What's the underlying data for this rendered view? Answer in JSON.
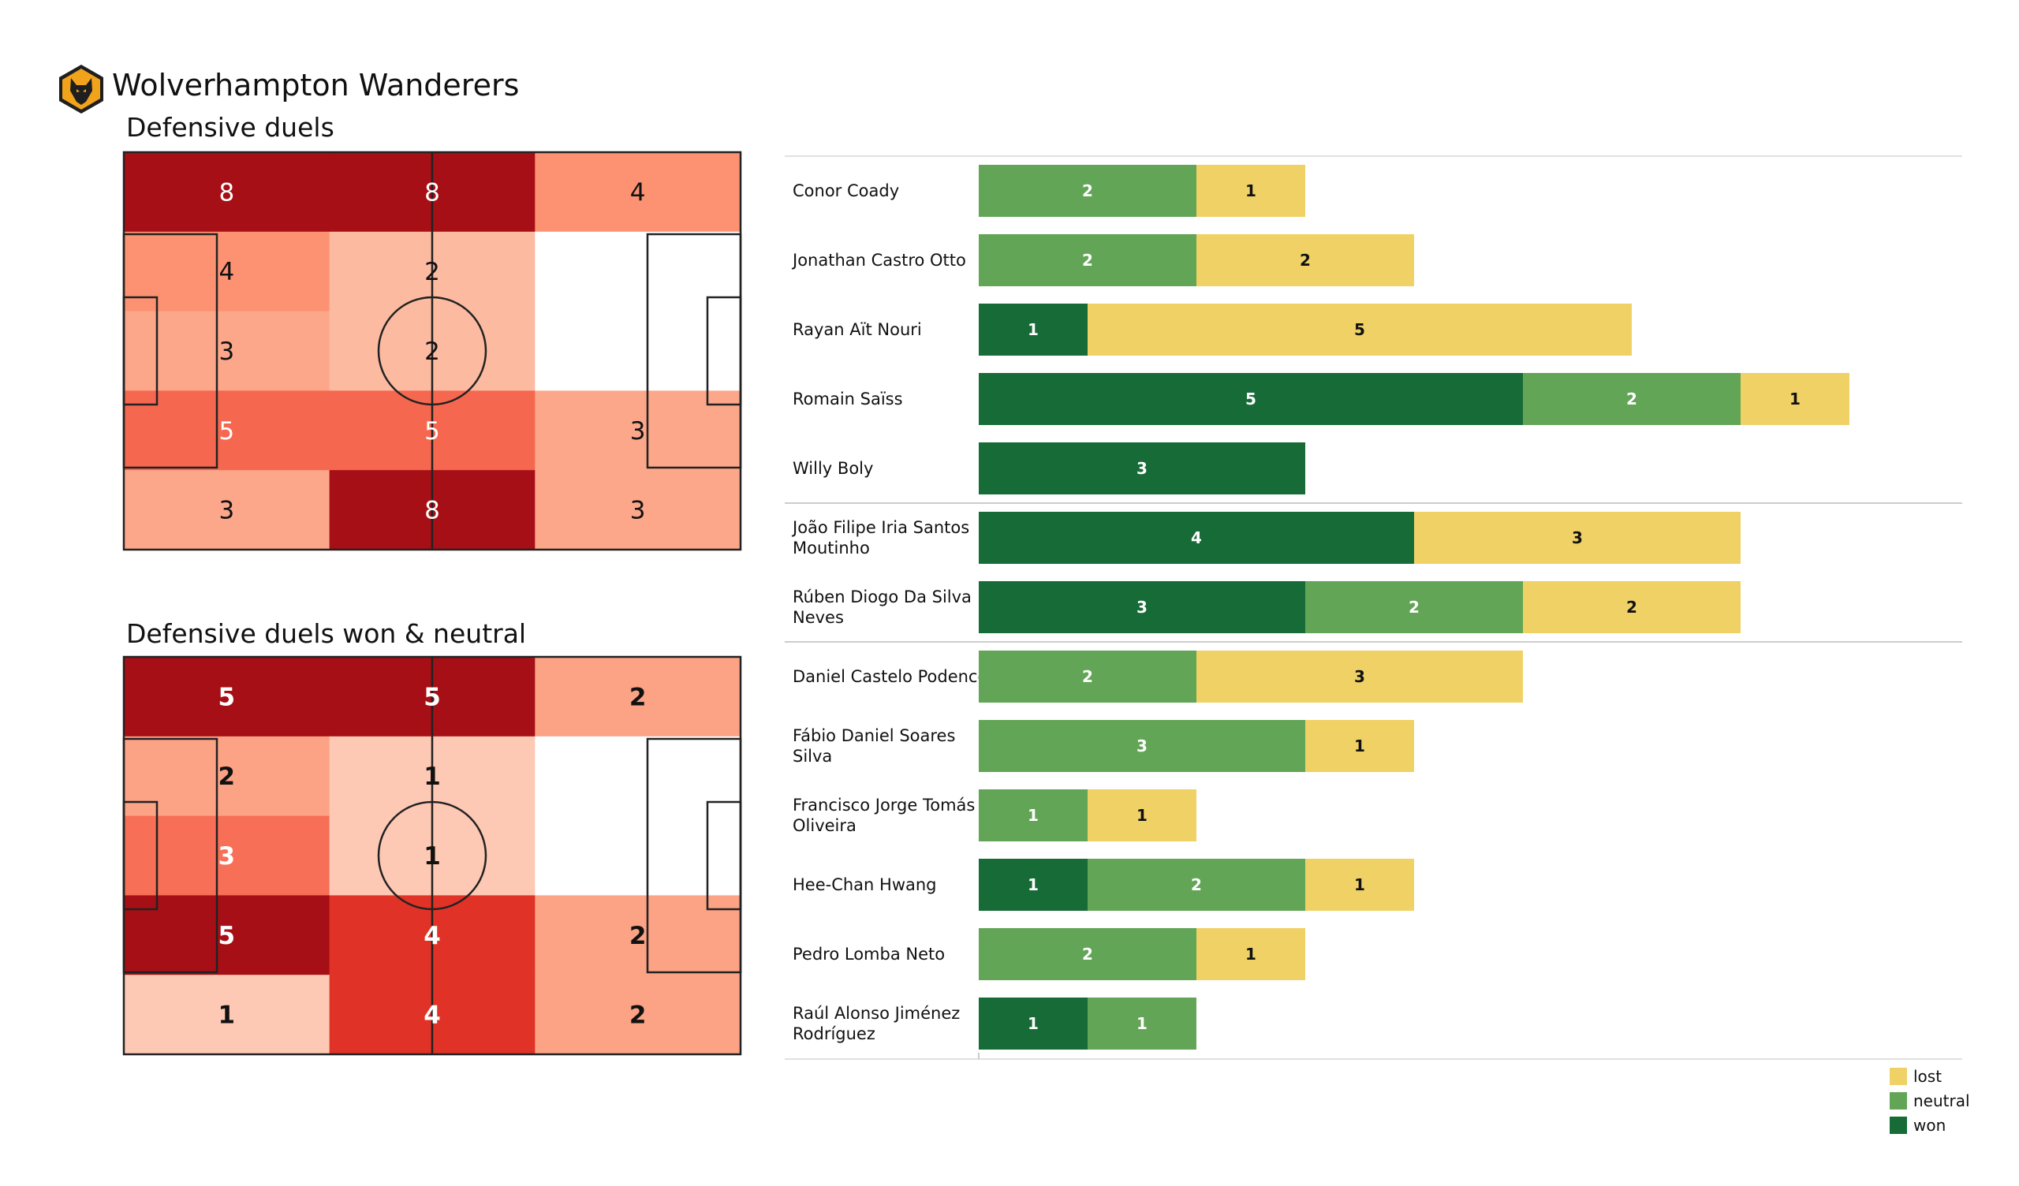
{
  "team": {
    "name": "Wolverhampton Wanderers",
    "logo_icon": "wolves-crest-icon"
  },
  "colors": {
    "won": "#176b37",
    "neutral": "#63a556",
    "lost": "#efd166",
    "line": "#222222"
  },
  "heatmaps": [
    {
      "title": "Defensive duels",
      "bold_values": false,
      "grid": [
        [
          8,
          8,
          4
        ],
        [
          4,
          2,
          0
        ],
        [
          3,
          2,
          0
        ],
        [
          5,
          5,
          3
        ],
        [
          3,
          8,
          3
        ]
      ],
      "labels": [
        [
          "8",
          "8",
          "4"
        ],
        [
          "4",
          "2",
          ""
        ],
        [
          "3",
          "2",
          ""
        ],
        [
          "5",
          "5",
          "3"
        ],
        [
          "3",
          "8",
          "3"
        ]
      ]
    },
    {
      "title": "Defensive duels won & neutral",
      "bold_values": true,
      "grid": [
        [
          5,
          5,
          2
        ],
        [
          2,
          1,
          0
        ],
        [
          3,
          1,
          0
        ],
        [
          5,
          4,
          2
        ],
        [
          1,
          4,
          2
        ]
      ],
      "labels": [
        [
          "5",
          "5",
          "2"
        ],
        [
          "2",
          "1",
          ""
        ],
        [
          "3",
          "1",
          ""
        ],
        [
          "5",
          "4",
          "2"
        ],
        [
          "1",
          "4",
          "2"
        ]
      ]
    }
  ],
  "chart_data": {
    "type": "bar",
    "orientation": "horizontal",
    "stacked": true,
    "categories": [
      "Conor  Coady",
      "Jonathan Castro Otto",
      "Rayan Aït Nouri",
      "Romain Saïss",
      "Willy Boly",
      "João Filipe Iria Santos Moutinho",
      "Rúben Diogo Da Silva Neves",
      "Daniel Castelo Podence",
      "Fábio Daniel Soares Silva",
      "Francisco Jorge Tomás Oliveira",
      "Hee-Chan Hwang",
      "Pedro Lomba Neto",
      "Raúl Alonso Jiménez Rodríguez"
    ],
    "category_lines": [
      [
        "Conor  Coady"
      ],
      [
        "Jonathan Castro Otto"
      ],
      [
        "Rayan Aït Nouri"
      ],
      [
        "Romain Saïss"
      ],
      [
        "Willy Boly"
      ],
      [
        "João Filipe Iria Santos",
        "Moutinho"
      ],
      [
        "Rúben Diogo Da Silva",
        "Neves"
      ],
      [
        "Daniel Castelo Podence"
      ],
      [
        "Fábio Daniel Soares",
        "Silva"
      ],
      [
        "Francisco Jorge Tomás",
        "Oliveira"
      ],
      [
        "Hee-Chan Hwang"
      ],
      [
        "Pedro Lomba Neto"
      ],
      [
        "Raúl Alonso Jiménez",
        "Rodríguez"
      ]
    ],
    "group_separators_after_index": [
      4,
      6
    ],
    "series": [
      {
        "name": "won",
        "key": "won",
        "values": [
          0,
          0,
          1,
          5,
          3,
          4,
          3,
          0,
          0,
          0,
          1,
          0,
          1
        ]
      },
      {
        "name": "neutral",
        "key": "neutral",
        "values": [
          2,
          2,
          0,
          2,
          0,
          0,
          2,
          2,
          3,
          1,
          2,
          2,
          1
        ]
      },
      {
        "name": "lost",
        "key": "lost",
        "values": [
          1,
          2,
          5,
          1,
          0,
          3,
          2,
          3,
          1,
          1,
          1,
          1,
          0
        ]
      }
    ],
    "xlim": [
      0,
      9
    ],
    "legend": {
      "position": "bottom-right",
      "entries": [
        {
          "label": "lost",
          "key": "lost"
        },
        {
          "label": "neutral",
          "key": "neutral"
        },
        {
          "label": "won",
          "key": "won"
        }
      ]
    }
  }
}
